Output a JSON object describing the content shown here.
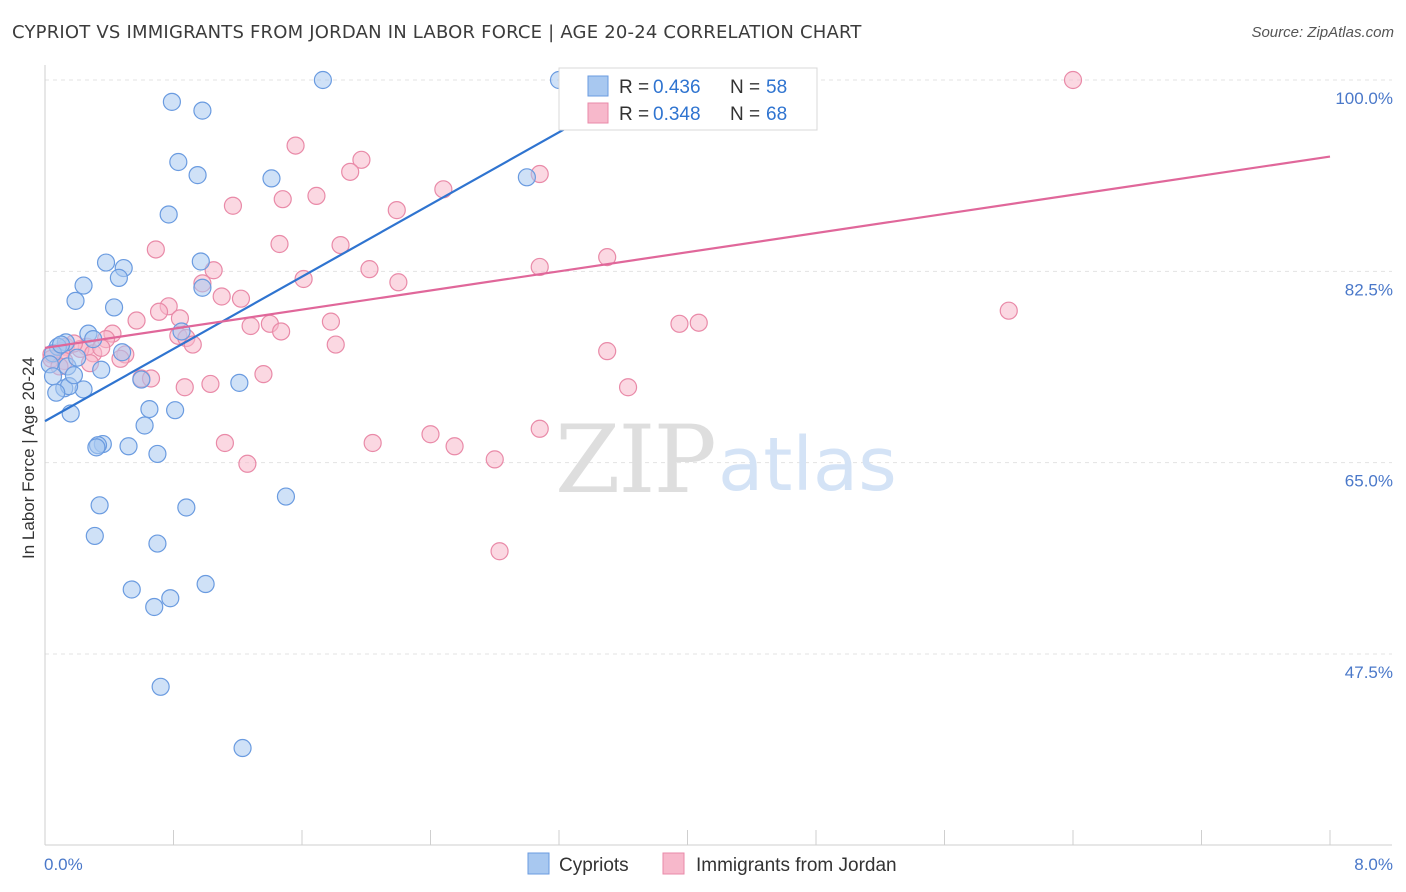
{
  "title": "CYPRIOT VS IMMIGRANTS FROM JORDAN IN LABOR FORCE | AGE 20-24 CORRELATION CHART",
  "source": "Source: ZipAtlas.com",
  "watermark": {
    "zip": "ZIP",
    "atlas": "atlas"
  },
  "colors": {
    "blue_fill": "#a8c8f0",
    "blue_stroke": "#6a9be0",
    "blue_line": "#2f74d0",
    "pink_fill": "#f7b8cb",
    "pink_stroke": "#e98aa8",
    "pink_line": "#e0679a",
    "tick_text": "#4a78c9",
    "grid": "#e3e3e3"
  },
  "chart_data": {
    "type": "scatter",
    "title": "CYPRIOT VS IMMIGRANTS FROM JORDAN IN LABOR FORCE | AGE 20-24 CORRELATION CHART",
    "xlabel": "",
    "ylabel": "In Labor Force | Age 20-24",
    "xlim": [
      0.0,
      8.0
    ],
    "ylim": [
      34.0,
      102.0
    ],
    "x_tick_labels": [
      "0.0%",
      "8.0%"
    ],
    "y_ticks": [
      47.5,
      65.0,
      82.5,
      100.0
    ],
    "y_tick_labels": [
      "47.5%",
      "65.0%",
      "82.5%",
      "100.0%"
    ],
    "legend": [
      {
        "name": "Cypriots",
        "r_label": "R =",
        "r_value": "0.436",
        "n_label": "N =",
        "n_value": "58"
      },
      {
        "name": "Immigrants from Jordan",
        "r_label": "R =",
        "r_value": "0.348",
        "n_label": "N =",
        "n_value": "68"
      }
    ],
    "series": [
      {
        "name": "Cypriots",
        "trend": {
          "x": [
            0.0,
            3.9
          ],
          "y": [
            68.8,
            101.0
          ]
        },
        "points": [
          [
            1.73,
            100.0
          ],
          [
            3.2,
            100.0
          ],
          [
            3.3,
            100.0
          ],
          [
            0.79,
            98.0
          ],
          [
            0.98,
            97.2
          ],
          [
            0.83,
            92.5
          ],
          [
            0.95,
            91.3
          ],
          [
            1.41,
            91.0
          ],
          [
            3.0,
            91.1
          ],
          [
            0.77,
            87.7
          ],
          [
            0.97,
            83.4
          ],
          [
            0.38,
            83.3
          ],
          [
            0.49,
            82.8
          ],
          [
            0.46,
            81.9
          ],
          [
            0.24,
            81.2
          ],
          [
            0.98,
            81.0
          ],
          [
            0.19,
            79.8
          ],
          [
            0.43,
            79.2
          ],
          [
            0.85,
            77.0
          ],
          [
            0.27,
            76.8
          ],
          [
            0.13,
            76.0
          ],
          [
            0.3,
            76.3
          ],
          [
            0.08,
            75.6
          ],
          [
            0.05,
            75.0
          ],
          [
            0.48,
            75.1
          ],
          [
            0.03,
            74.0
          ],
          [
            0.14,
            73.8
          ],
          [
            0.35,
            73.5
          ],
          [
            0.05,
            72.9
          ],
          [
            0.6,
            72.6
          ],
          [
            0.12,
            71.8
          ],
          [
            0.24,
            71.7
          ],
          [
            1.21,
            72.3
          ],
          [
            0.15,
            72.0
          ],
          [
            0.07,
            71.4
          ],
          [
            0.65,
            69.9
          ],
          [
            0.81,
            69.8
          ],
          [
            0.16,
            69.5
          ],
          [
            0.62,
            68.4
          ],
          [
            0.36,
            66.7
          ],
          [
            0.33,
            66.6
          ],
          [
            0.52,
            66.5
          ],
          [
            0.32,
            66.4
          ],
          [
            0.7,
            65.8
          ],
          [
            1.5,
            61.9
          ],
          [
            0.34,
            61.1
          ],
          [
            0.88,
            60.9
          ],
          [
            0.31,
            58.3
          ],
          [
            0.7,
            57.6
          ],
          [
            1.0,
            53.9
          ],
          [
            0.54,
            53.4
          ],
          [
            0.78,
            52.6
          ],
          [
            0.68,
            51.8
          ],
          [
            0.72,
            44.5
          ],
          [
            1.23,
            38.9
          ],
          [
            0.18,
            73.0
          ],
          [
            0.1,
            75.8
          ],
          [
            0.2,
            74.6
          ]
        ]
      },
      {
        "name": "Immigrants from Jordan",
        "trend": {
          "x": [
            0.0,
            8.0
          ],
          "y": [
            75.5,
            93.0
          ]
        },
        "points": [
          [
            6.4,
            100.0
          ],
          [
            1.56,
            94.0
          ],
          [
            1.97,
            92.7
          ],
          [
            1.9,
            91.6
          ],
          [
            3.08,
            91.4
          ],
          [
            2.48,
            90.0
          ],
          [
            1.69,
            89.4
          ],
          [
            1.48,
            89.1
          ],
          [
            1.17,
            88.5
          ],
          [
            2.19,
            88.1
          ],
          [
            0.69,
            84.5
          ],
          [
            1.46,
            85.0
          ],
          [
            1.84,
            84.9
          ],
          [
            3.5,
            83.8
          ],
          [
            1.05,
            82.6
          ],
          [
            2.02,
            82.7
          ],
          [
            3.08,
            82.9
          ],
          [
            1.61,
            81.8
          ],
          [
            0.98,
            81.4
          ],
          [
            1.1,
            80.2
          ],
          [
            1.22,
            80.0
          ],
          [
            0.77,
            79.3
          ],
          [
            0.71,
            78.8
          ],
          [
            0.84,
            78.2
          ],
          [
            0.57,
            78.0
          ],
          [
            3.95,
            77.7
          ],
          [
            4.07,
            77.8
          ],
          [
            6.0,
            78.9
          ],
          [
            1.78,
            77.9
          ],
          [
            1.28,
            77.5
          ],
          [
            1.4,
            77.7
          ],
          [
            1.47,
            77.0
          ],
          [
            0.42,
            76.8
          ],
          [
            0.83,
            76.6
          ],
          [
            0.88,
            76.4
          ],
          [
            0.38,
            76.3
          ],
          [
            0.92,
            75.8
          ],
          [
            1.81,
            75.8
          ],
          [
            0.26,
            75.6
          ],
          [
            0.13,
            75.6
          ],
          [
            0.22,
            75.4
          ],
          [
            0.1,
            75.2
          ],
          [
            0.3,
            75.0
          ],
          [
            0.04,
            74.9
          ],
          [
            0.5,
            74.9
          ],
          [
            0.47,
            74.5
          ],
          [
            3.5,
            75.2
          ],
          [
            0.12,
            74.3
          ],
          [
            0.04,
            74.5
          ],
          [
            1.36,
            73.1
          ],
          [
            0.6,
            72.7
          ],
          [
            0.66,
            72.7
          ],
          [
            1.03,
            72.2
          ],
          [
            0.87,
            71.9
          ],
          [
            3.63,
            71.9
          ],
          [
            2.2,
            81.5
          ],
          [
            3.08,
            68.1
          ],
          [
            2.4,
            67.6
          ],
          [
            1.12,
            66.8
          ],
          [
            2.04,
            66.8
          ],
          [
            2.55,
            66.5
          ],
          [
            2.8,
            65.3
          ],
          [
            1.26,
            64.9
          ],
          [
            2.83,
            56.9
          ],
          [
            0.09,
            73.8
          ],
          [
            0.18,
            75.9
          ],
          [
            0.35,
            75.5
          ],
          [
            0.28,
            74.1
          ]
        ]
      }
    ]
  }
}
